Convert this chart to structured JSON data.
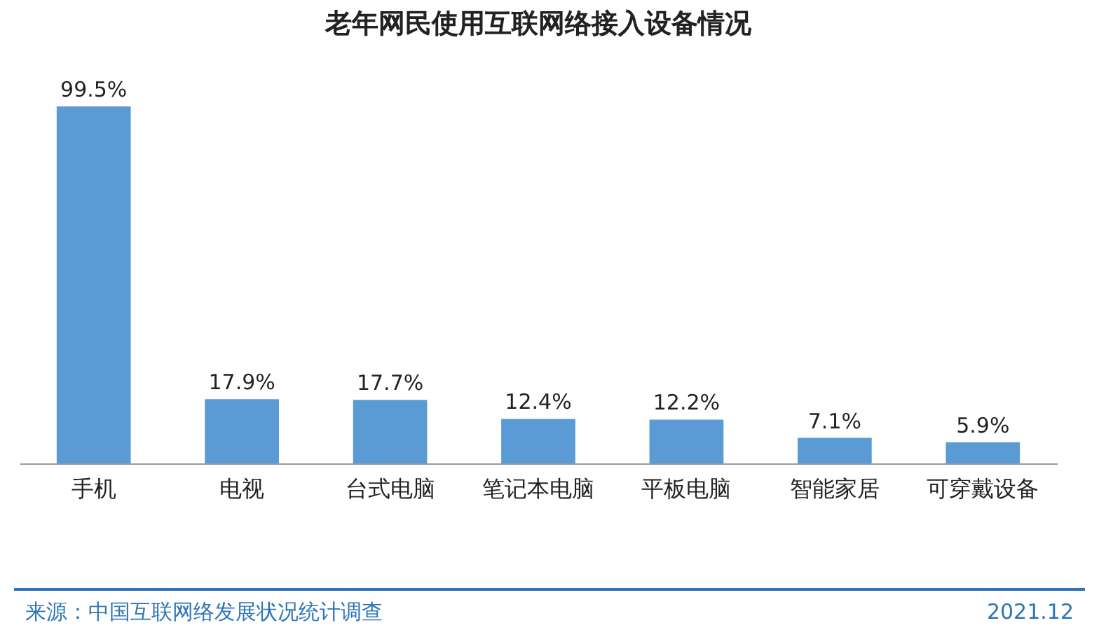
{
  "chart_data": {
    "type": "bar",
    "title": "老年网民使用互联网络接入设备情况",
    "categories": [
      "手机",
      "电视",
      "台式电脑",
      "笔记本电脑",
      "平板电脑",
      "智能家居",
      "可穿戴设备"
    ],
    "values": [
      99.5,
      17.9,
      17.7,
      12.4,
      12.2,
      7.1,
      5.9
    ],
    "value_labels": [
      "99.5%",
      "17.9%",
      "17.7%",
      "12.4%",
      "12.2%",
      "7.1%",
      "5.9%"
    ],
    "color": "#5b9bd5",
    "annotations": [
      "来源：中国互联网络发展状况统计调查",
      "2021.12"
    ]
  }
}
